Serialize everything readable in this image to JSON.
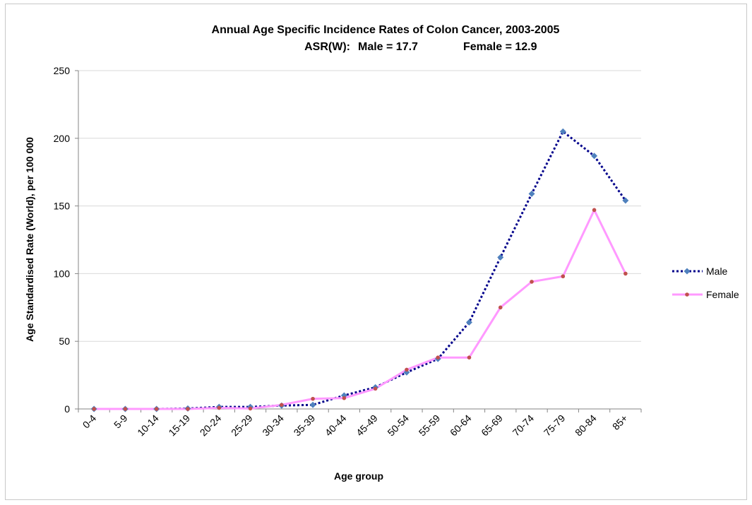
{
  "chart_data": {
    "type": "line",
    "title": "Annual Age Specific Incidence Rates of Colon Cancer, 2003-2005",
    "subtitle_parts": {
      "lead": "ASR(W):",
      "male": "Male = 17.7",
      "female": "Female = 12.9"
    },
    "xlabel": "Age group",
    "ylabel": "Age Standardised Rate (World), per 100 000",
    "ylim": [
      0,
      250
    ],
    "yticks": [
      0,
      50,
      100,
      150,
      200,
      250
    ],
    "categories": [
      "0-4",
      "5-9",
      "10-14",
      "15-19",
      "20-24",
      "25-29",
      "30-34",
      "35-39",
      "40-44",
      "45-49",
      "50-54",
      "55-59",
      "60-64",
      "65-69",
      "70-74",
      "75-79",
      "80-84",
      "85+"
    ],
    "grid": "horizontal",
    "legend_position": "right",
    "series": [
      {
        "name": "Male",
        "color": "#00008b",
        "marker_color": "#4f81bd",
        "line_style": "dotted",
        "marker": "diamond",
        "values": [
          0,
          0,
          0,
          0.3,
          1.5,
          1.5,
          2.5,
          3,
          10,
          16,
          27,
          37,
          64,
          112,
          159,
          205,
          187,
          154
        ]
      },
      {
        "name": "Female",
        "color": "#ff99ff",
        "marker_color": "#c0504d",
        "line_style": "solid",
        "marker": "circle",
        "values": [
          0,
          0,
          0,
          0,
          0.8,
          0.3,
          3,
          7.5,
          8,
          15,
          29,
          38,
          38,
          75,
          94,
          98,
          147,
          100
        ]
      }
    ]
  }
}
